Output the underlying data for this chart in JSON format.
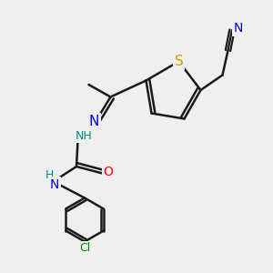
{
  "bg_color": "#efefef",
  "bond_color": "#1a1a1a",
  "bond_width": 1.8,
  "atom_colors": {
    "S": "#c8a000",
    "N": "#0000ff",
    "O": "#ff0000",
    "Cl": "#008800",
    "N2": "#0000cc",
    "H_label": "#008888"
  },
  "figsize": [
    3.0,
    3.0
  ],
  "dpi": 100,
  "xlim": [
    0,
    300
  ],
  "ylim": [
    0,
    300
  ]
}
